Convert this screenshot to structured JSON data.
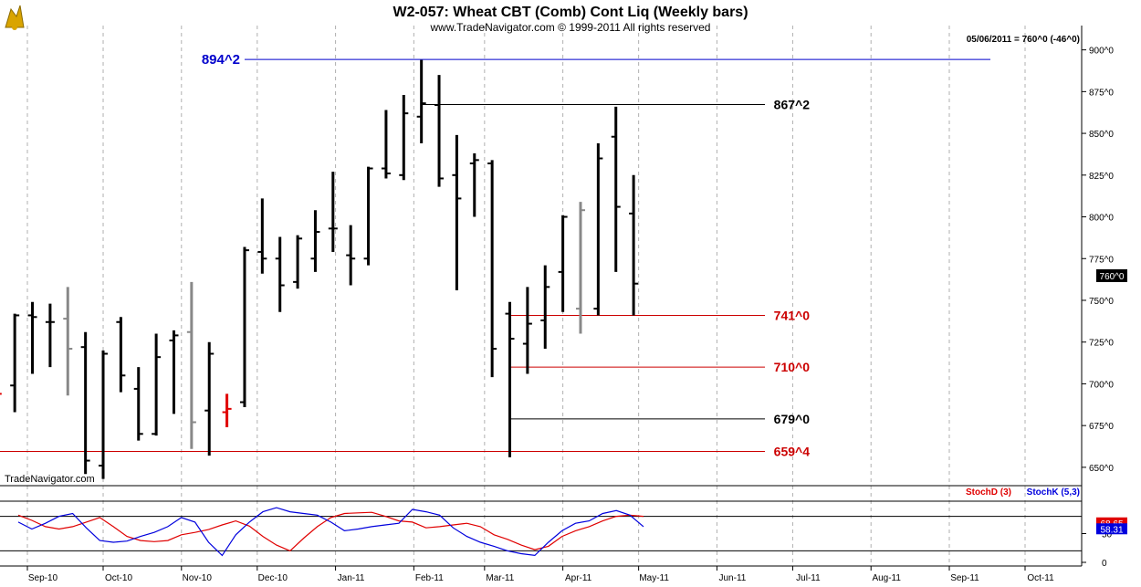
{
  "header": {
    "title": "W2-057:  Wheat CBT (Comb) Cont Liq  (Weekly bars)",
    "subtitle": "www.TradeNavigator.com © 1999-2011 All rights reserved",
    "last_quote": "05/06/2011 = 760^0 (-46^0)",
    "watermark": "TradeNavigator.com",
    "current_price_tag": "760^0"
  },
  "colors": {
    "up_bar": "#000000",
    "neutral_bar": "#888888",
    "highlight_bar": "#e00000",
    "level_red": "#cc0000",
    "level_blue": "#0000cc",
    "stoch_d": "#e00000",
    "stoch_k": "#0000dd"
  },
  "chart_data": [
    {
      "type": "ohlc",
      "name": "Wheat CBT (Comb) Cont Liq",
      "x_ticks": [
        "Sep-10",
        "Oct-10",
        "Nov-10",
        "Dec-10",
        "Jan-11",
        "Feb-11",
        "Mar-11",
        "Apr-11",
        "May-11",
        "Jun-11",
        "Jul-11",
        "Aug-11",
        "Sep-11",
        "Oct-11"
      ],
      "y_ticks": [
        "900^0",
        "875^0",
        "850^0",
        "825^0",
        "800^0",
        "775^0",
        "750^0",
        "725^0",
        "700^0",
        "675^0",
        "650^0"
      ],
      "y_tick_values": [
        900,
        875,
        850,
        825,
        800,
        775,
        750,
        725,
        700,
        675,
        650
      ],
      "ylim": [
        639,
        908
      ],
      "bars": [
        {
          "date": "2010-08-20",
          "o": 712,
          "h": 730,
          "l": 679,
          "c": 694,
          "color": "red"
        },
        {
          "date": "2010-08-27",
          "o": 699,
          "h": 742,
          "l": 683,
          "c": 741,
          "color": "black"
        },
        {
          "date": "2010-09-03",
          "o": 741,
          "h": 749,
          "l": 706,
          "c": 740,
          "color": "black"
        },
        {
          "date": "2010-09-10",
          "o": 737,
          "h": 748,
          "l": 710,
          "c": 737,
          "color": "black"
        },
        {
          "date": "2010-09-17",
          "o": 739,
          "h": 758,
          "l": 693,
          "c": 721,
          "color": "gray"
        },
        {
          "date": "2010-09-24",
          "o": 722,
          "h": 731,
          "l": 646,
          "c": 654,
          "color": "black"
        },
        {
          "date": "2010-10-01",
          "o": 651,
          "h": 720,
          "l": 643,
          "c": 718,
          "color": "black"
        },
        {
          "date": "2010-10-08",
          "o": 737,
          "h": 740,
          "l": 695,
          "c": 705,
          "color": "black"
        },
        {
          "date": "2010-10-15",
          "o": 697,
          "h": 710,
          "l": 666,
          "c": 670,
          "color": "black"
        },
        {
          "date": "2010-10-22",
          "o": 670,
          "h": 730,
          "l": 669,
          "c": 716,
          "color": "black"
        },
        {
          "date": "2010-10-29",
          "o": 726,
          "h": 732,
          "l": 682,
          "c": 729,
          "color": "black"
        },
        {
          "date": "2010-11-05",
          "o": 731,
          "h": 761,
          "l": 661,
          "c": 677,
          "color": "gray"
        },
        {
          "date": "2010-11-12",
          "o": 684,
          "h": 725,
          "l": 657,
          "c": 718,
          "color": "black"
        },
        {
          "date": "2010-11-19",
          "o": 683,
          "h": 694,
          "l": 674,
          "c": 685,
          "color": "red"
        },
        {
          "date": "2010-11-26",
          "o": 689,
          "h": 782,
          "l": 686,
          "c": 780,
          "color": "black"
        },
        {
          "date": "2010-12-03",
          "o": 779,
          "h": 811,
          "l": 766,
          "c": 775,
          "color": "black"
        },
        {
          "date": "2010-12-10",
          "o": 775,
          "h": 788,
          "l": 743,
          "c": 759,
          "color": "black"
        },
        {
          "date": "2010-12-17",
          "o": 761,
          "h": 789,
          "l": 757,
          "c": 787,
          "color": "black"
        },
        {
          "date": "2010-12-24",
          "o": 775,
          "h": 804,
          "l": 767,
          "c": 791,
          "color": "black"
        },
        {
          "date": "2010-12-31",
          "o": 793,
          "h": 827,
          "l": 779,
          "c": 793,
          "color": "black"
        },
        {
          "date": "2011-01-07",
          "o": 777,
          "h": 795,
          "l": 759,
          "c": 775,
          "color": "black"
        },
        {
          "date": "2011-01-14",
          "o": 775,
          "h": 830,
          "l": 771,
          "c": 829,
          "color": "black"
        },
        {
          "date": "2011-01-21",
          "o": 829,
          "h": 864,
          "l": 823,
          "c": 826,
          "color": "black"
        },
        {
          "date": "2011-01-28",
          "o": 825,
          "h": 873,
          "l": 822,
          "c": 862,
          "color": "black"
        },
        {
          "date": "2011-02-04",
          "o": 860,
          "h": 894,
          "l": 844,
          "c": 868,
          "color": "black"
        },
        {
          "date": "2011-02-11",
          "o": 867,
          "h": 885,
          "l": 818,
          "c": 823,
          "color": "black"
        },
        {
          "date": "2011-02-18",
          "o": 825,
          "h": 849,
          "l": 756,
          "c": 811,
          "color": "black"
        },
        {
          "date": "2011-02-25",
          "o": 832,
          "h": 838,
          "l": 800,
          "c": 834,
          "color": "black"
        },
        {
          "date": "2011-03-04",
          "o": 832,
          "h": 834,
          "l": 704,
          "c": 721,
          "color": "black"
        },
        {
          "date": "2011-03-11",
          "o": 742,
          "h": 749,
          "l": 656,
          "c": 727,
          "color": "black"
        },
        {
          "date": "2011-03-18",
          "o": 724,
          "h": 758,
          "l": 706,
          "c": 736,
          "color": "black"
        },
        {
          "date": "2011-03-25",
          "o": 738,
          "h": 771,
          "l": 721,
          "c": 758,
          "color": "black"
        },
        {
          "date": "2011-04-01",
          "o": 767,
          "h": 801,
          "l": 743,
          "c": 800,
          "color": "black"
        },
        {
          "date": "2011-04-08",
          "o": 745,
          "h": 809,
          "l": 730,
          "c": 804,
          "color": "gray"
        },
        {
          "date": "2011-04-15",
          "o": 745,
          "h": 844,
          "l": 741,
          "c": 835,
          "color": "black"
        },
        {
          "date": "2011-04-22",
          "o": 848,
          "h": 866,
          "l": 767,
          "c": 806,
          "color": "black"
        },
        {
          "date": "2011-04-29",
          "o": 802,
          "h": 825,
          "l": 741,
          "c": 760,
          "color": "black"
        }
      ],
      "levels": [
        {
          "label": "894^2",
          "value": 894.25,
          "color": "blue",
          "from": "2010-11-26"
        },
        {
          "label": "867^2",
          "value": 867.25,
          "color": "black",
          "from": "2011-02-04"
        },
        {
          "label": "741^0",
          "value": 741,
          "color": "red",
          "from": "2011-03-11"
        },
        {
          "label": "710^0",
          "value": 710,
          "color": "red",
          "from": "2011-03-11"
        },
        {
          "label": "679^0",
          "value": 679,
          "color": "black",
          "from": "2011-03-11"
        },
        {
          "label": "659^4",
          "value": 659.5,
          "color": "red",
          "from": "2010-07-01"
        }
      ]
    },
    {
      "type": "line",
      "name": "Stochastic",
      "series": [
        {
          "name": "StochD (3)",
          "color": "red",
          "values": [
            82,
            73,
            62,
            58,
            62,
            70,
            78,
            62,
            45,
            38,
            36,
            38,
            48,
            52,
            57,
            65,
            72,
            63,
            45,
            30,
            20,
            42,
            62,
            78,
            85,
            86,
            87,
            80,
            72,
            70,
            60,
            62,
            65,
            68,
            62,
            48,
            40,
            30,
            22,
            28,
            45,
            55,
            62,
            72,
            80,
            82,
            80
          ]
        },
        {
          "name": "StochK (5,3)",
          "color": "blue",
          "values": [
            70,
            58,
            68,
            80,
            85,
            60,
            38,
            35,
            37,
            45,
            52,
            62,
            78,
            70,
            35,
            12,
            48,
            70,
            88,
            95,
            88,
            85,
            82,
            70,
            55,
            58,
            62,
            65,
            68,
            92,
            88,
            82,
            60,
            45,
            35,
            28,
            20,
            15,
            12,
            35,
            55,
            68,
            72,
            85,
            90,
            82,
            62
          ]
        }
      ],
      "y_ticks": [
        "50",
        "0"
      ],
      "last_values": [
        "68.65",
        "58.31"
      ]
    }
  ]
}
